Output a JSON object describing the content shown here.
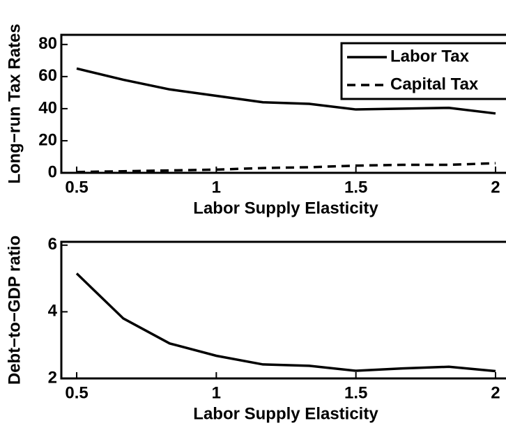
{
  "chart_data": [
    {
      "type": "line",
      "ylabel": "Long−run Tax Rates",
      "xlabel": "Labor Supply Elasticity",
      "x": [
        0.5,
        0.667,
        0.833,
        1,
        1.167,
        1.333,
        1.5,
        1.667,
        1.833,
        2
      ],
      "series": [
        {
          "name": "Labor Tax",
          "color": "#000000",
          "linestyle": "solid",
          "values": [
            65,
            58,
            52,
            48,
            44,
            43,
            39.5,
            40,
            40.5,
            37
          ]
        },
        {
          "name": "Capital Tax",
          "color": "#000000",
          "linestyle": "dashed",
          "values": [
            0.5,
            1,
            1.5,
            2,
            3,
            3.5,
            4.5,
            5,
            5,
            6
          ]
        }
      ],
      "xlim": [
        0.445,
        2.05
      ],
      "xticks": [
        0.5,
        1,
        1.5,
        2
      ],
      "ylim": [
        0,
        86
      ],
      "yticks": [
        0,
        20,
        40,
        60,
        80
      ],
      "legend": "upper right"
    },
    {
      "type": "line",
      "ylabel": "Debt−to−GDP ratio",
      "xlabel": "Labor Supply Elasticity",
      "x": [
        0.5,
        0.667,
        0.833,
        1,
        1.167,
        1.333,
        1.5,
        1.667,
        1.833,
        2
      ],
      "series": [
        {
          "color": "#000000",
          "linestyle": "solid",
          "values": [
            5.15,
            3.8,
            3.05,
            2.68,
            2.42,
            2.38,
            2.23,
            2.3,
            2.35,
            2.22
          ]
        }
      ],
      "xlim": [
        0.445,
        2.05
      ],
      "xticks": [
        0.5,
        1,
        1.5,
        2
      ],
      "ylim": [
        2,
        6.1
      ],
      "yticks": [
        2,
        4,
        6
      ]
    }
  ]
}
